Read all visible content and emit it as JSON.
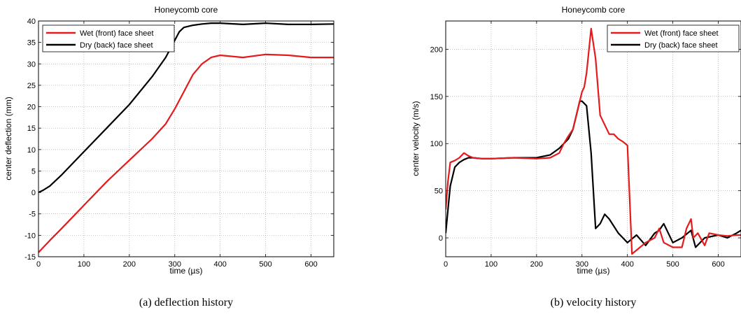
{
  "chart_data": [
    {
      "type": "line",
      "title": "Honeycomb core",
      "xlabel": "time (µs)",
      "ylabel": "center deflection (mm)",
      "caption": "(a)  deflection history",
      "xlim": [
        0,
        650
      ],
      "ylim": [
        -15,
        40
      ],
      "xticks": [
        0,
        100,
        200,
        300,
        400,
        500,
        600
      ],
      "yticks": [
        -15,
        -10,
        -5,
        0,
        5,
        10,
        15,
        20,
        25,
        30,
        35,
        40
      ],
      "grid": true,
      "legend_position": "top-left",
      "series": [
        {
          "name": "Wet (front) face sheet",
          "color": "#e41a1c",
          "x": [
            0,
            25,
            50,
            100,
            150,
            200,
            250,
            280,
            300,
            310,
            320,
            340,
            360,
            380,
            400,
            450,
            500,
            550,
            600,
            650
          ],
          "y": [
            -14,
            -11.2,
            -8.5,
            -3,
            2.5,
            7.5,
            12.5,
            16,
            19.5,
            21.5,
            23.5,
            27.5,
            30,
            31.5,
            32,
            31.5,
            32.2,
            32,
            31.5,
            31.5
          ]
        },
        {
          "name": "Dry (back) face sheet",
          "color": "#000000",
          "x": [
            0,
            10,
            25,
            50,
            100,
            150,
            200,
            250,
            280,
            300,
            310,
            320,
            340,
            360,
            380,
            400,
            450,
            500,
            550,
            600,
            650
          ],
          "y": [
            0,
            0.5,
            1.5,
            4,
            9.5,
            15,
            20.5,
            27,
            31.5,
            35.5,
            37.5,
            38.5,
            39,
            39.3,
            39.5,
            39.5,
            39.2,
            39.5,
            39.2,
            39.2,
            39.3
          ]
        }
      ]
    },
    {
      "type": "line",
      "title": "Honeycomb core",
      "xlabel": "time (µs)",
      "ylabel": "center velocity (m/s)",
      "caption": "(b)  velocity history",
      "xlim": [
        0,
        650
      ],
      "ylim": [
        -20,
        230
      ],
      "xticks": [
        0,
        100,
        200,
        300,
        400,
        500,
        600
      ],
      "yticks": [
        0,
        50,
        100,
        150,
        200
      ],
      "grid": true,
      "legend_position": "top-right",
      "series": [
        {
          "name": "Wet (front) face sheet",
          "color": "#e41a1c",
          "x": [
            0,
            5,
            10,
            20,
            30,
            40,
            50,
            60,
            80,
            100,
            150,
            200,
            230,
            250,
            260,
            270,
            280,
            290,
            300,
            305,
            310,
            320,
            330,
            340,
            350,
            360,
            370,
            380,
            390,
            400,
            410,
            420,
            440,
            460,
            470,
            480,
            500,
            520,
            530,
            540,
            545,
            555,
            570,
            580,
            600,
            620,
            640,
            650
          ],
          "y": [
            30,
            60,
            80,
            82,
            85,
            90,
            87,
            85,
            84,
            84,
            85,
            84,
            85,
            90,
            100,
            108,
            115,
            135,
            155,
            160,
            175,
            222,
            190,
            130,
            120,
            110,
            110,
            105,
            102,
            98,
            -17,
            -13,
            -5,
            0,
            10,
            -5,
            -10,
            -10,
            10,
            20,
            0,
            5,
            -8,
            5,
            3,
            2,
            3,
            3
          ]
        },
        {
          "name": "Dry (back) face sheet",
          "color": "#000000",
          "x": [
            0,
            5,
            10,
            20,
            30,
            40,
            50,
            60,
            80,
            100,
            150,
            200,
            230,
            250,
            270,
            280,
            290,
            295,
            300,
            310,
            320,
            330,
            340,
            350,
            360,
            380,
            400,
            420,
            440,
            460,
            470,
            480,
            500,
            520,
            540,
            550,
            570,
            600,
            620,
            640,
            650
          ],
          "y": [
            5,
            30,
            55,
            75,
            80,
            83,
            85,
            85,
            84,
            84,
            85,
            85,
            88,
            95,
            105,
            115,
            135,
            145,
            145,
            140,
            90,
            10,
            15,
            25,
            20,
            5,
            -5,
            3,
            -8,
            5,
            8,
            15,
            -5,
            0,
            8,
            -10,
            0,
            3,
            0,
            5,
            8
          ]
        }
      ]
    }
  ]
}
